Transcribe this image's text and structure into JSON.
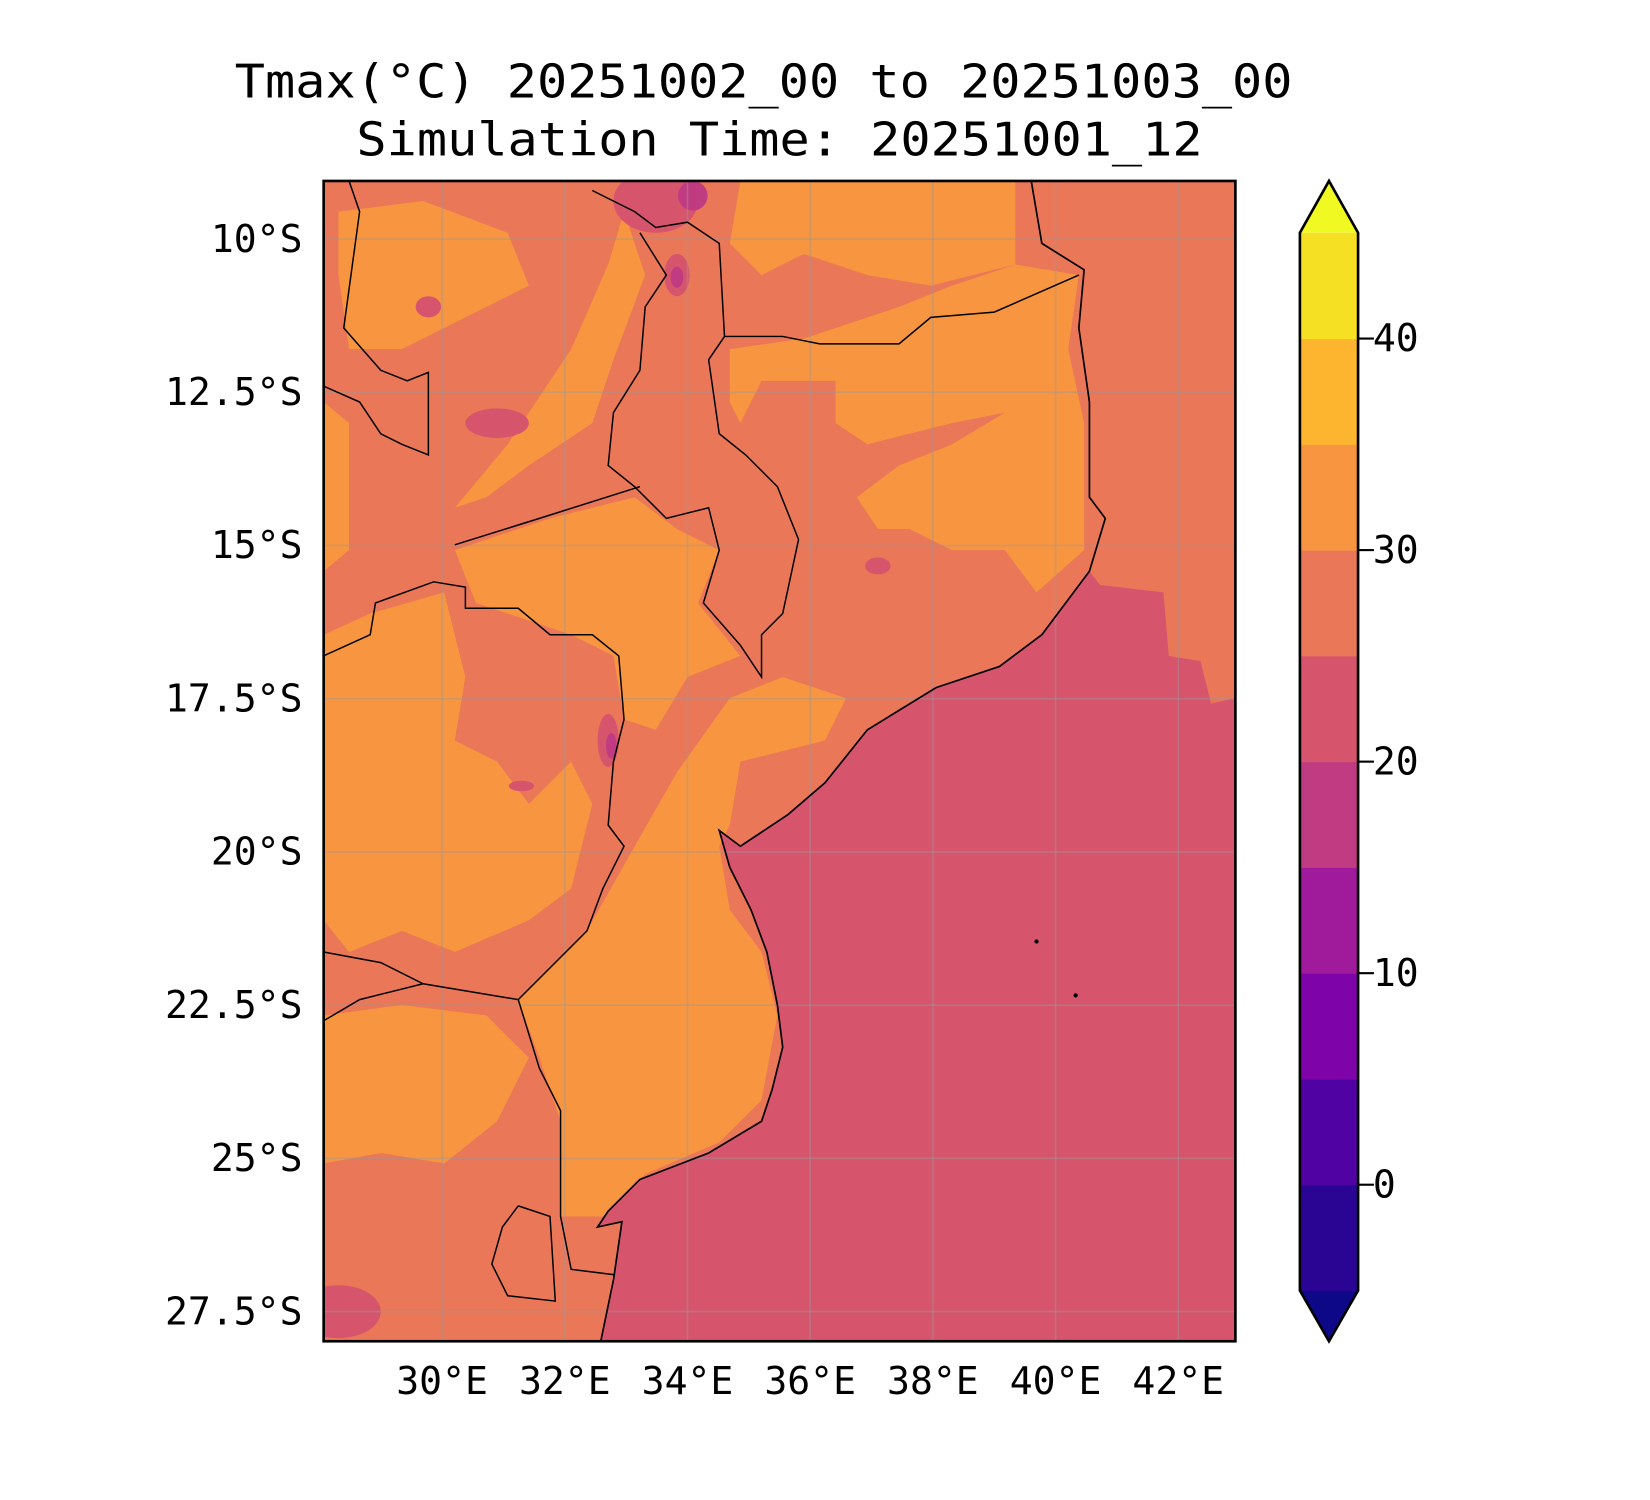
{
  "chart_data": {
    "type": "heatmap",
    "title": "Tmax(°C) 20251002_00 to 20251003_00",
    "subtitle": "Simulation Time: 20251001_12",
    "variable": "Tmax",
    "units": "°C",
    "lon_range": [
      28,
      43
    ],
    "lat_range": [
      -28,
      -9
    ],
    "x_ticks": [
      30,
      32,
      34,
      36,
      38,
      40,
      42
    ],
    "x_tick_labels": [
      "30°E",
      "32°E",
      "34°E",
      "36°E",
      "38°E",
      "40°E",
      "42°E"
    ],
    "y_ticks": [
      -10,
      -12.5,
      -15,
      -17.5,
      -20,
      -22.5,
      -25,
      -27.5
    ],
    "y_tick_labels": [
      "10°S",
      "12.5°S",
      "15°S",
      "17.5°S",
      "20°S",
      "22.5°S",
      "25°S",
      "27.5°S"
    ],
    "grid": true,
    "colorbar": {
      "levels": [
        -5,
        0,
        5,
        10,
        15,
        20,
        25,
        30,
        35,
        40,
        45
      ],
      "extend": "both",
      "colors": [
        "#0d0887",
        "#2a0593",
        "#5002a2",
        "#7e03a8",
        "#a01a9c",
        "#c13b82",
        "#d6556d",
        "#e97758",
        "#f89540",
        "#fdb42f",
        "#f5e024",
        "#f0f921"
      ],
      "ticks": [
        0,
        10,
        20,
        30,
        40
      ],
      "tick_labels": [
        "0",
        "10",
        "20",
        "30",
        "40"
      ]
    },
    "field_summary": {
      "ocean": "20-25",
      "northeast_ocean": "25-30",
      "land_predominant": [
        "25-30",
        "30-35"
      ],
      "highland_minimum": "15-20"
    }
  }
}
